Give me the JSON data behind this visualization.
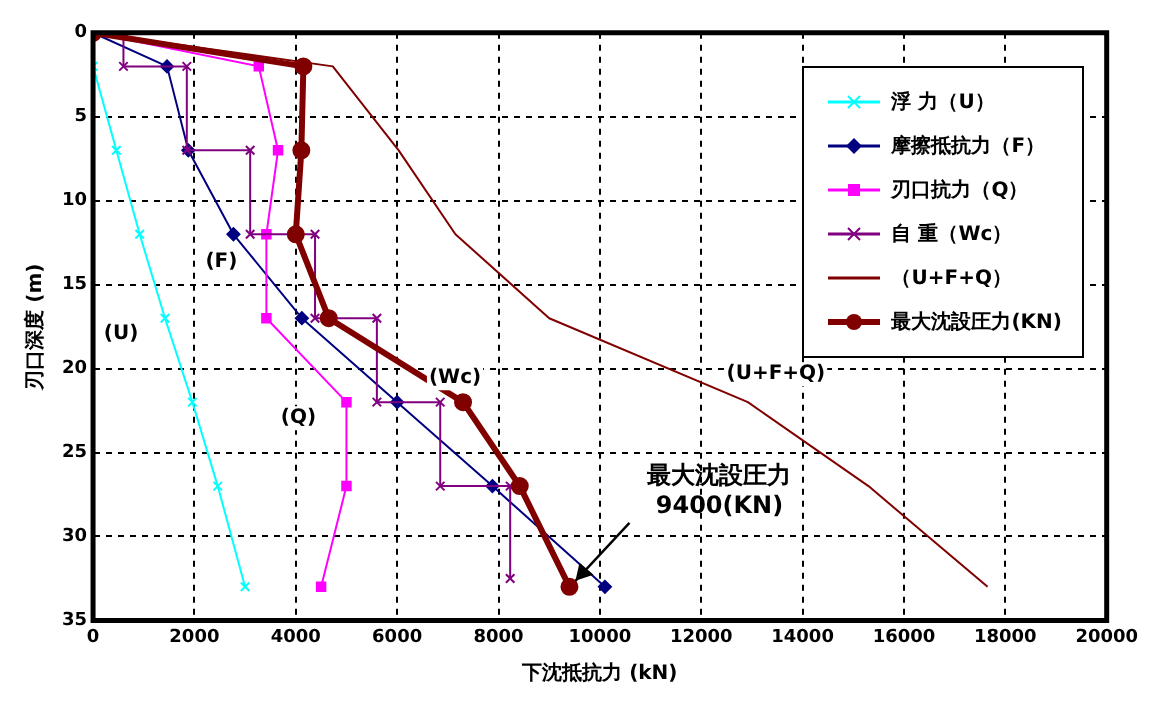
{
  "chart_data": {
    "type": "line",
    "xlabel": "下沈抵抗力 (kN)",
    "ylabel": "刃口深度 (m)",
    "xlim": [
      0,
      20000
    ],
    "xticks": [
      0,
      2000,
      4000,
      6000,
      8000,
      10000,
      12000,
      14000,
      16000,
      18000,
      20000
    ],
    "ylim": [
      35,
      0
    ],
    "yticks": [
      0,
      5,
      10,
      15,
      20,
      25,
      30,
      35
    ],
    "grid": true,
    "legend": "top right",
    "line_style": "solid",
    "series": [
      {
        "name": "浮 力（U）",
        "color": "#00ffff",
        "marker": "cross",
        "x": [
          0,
          0,
          460,
          920,
          1420,
          1960,
          2460,
          3000
        ],
        "values": [
          0,
          2,
          7,
          12,
          17,
          22,
          27,
          33
        ]
      },
      {
        "name": "摩擦抵抗力（F）",
        "color": "#000080",
        "marker": "diamond",
        "x": [
          0,
          1460,
          1880,
          2770,
          4120,
          6000,
          7880,
          10100
        ],
        "values": [
          0,
          2,
          7,
          12,
          17,
          22,
          27,
          33
        ]
      },
      {
        "name": "刃口抗力（Q）",
        "color": "#ff00ff",
        "marker": "square",
        "x": [
          0,
          3270,
          3650,
          3420,
          3420,
          5000,
          5000,
          4500
        ],
        "values": [
          0,
          2,
          7,
          12,
          17,
          22,
          27,
          33
        ]
      },
      {
        "name": "自 重（Wc）",
        "color": "#800080",
        "marker": "cross",
        "x": [
          600,
          600,
          1850,
          1850,
          3100,
          3100,
          4380,
          4380,
          5600,
          5600,
          6850,
          6850,
          8230,
          8230
        ],
        "values": [
          0,
          2,
          2,
          7,
          7,
          12,
          12,
          17,
          17,
          22,
          22,
          27,
          27,
          32.5
        ]
      },
      {
        "name": "（U+F+Q）",
        "color": "#800000",
        "marker": "none",
        "x": [
          0,
          4730,
          6030,
          7150,
          9000,
          12920,
          15300,
          17650
        ],
        "values": [
          0,
          2,
          7,
          12,
          17,
          22,
          27,
          33
        ]
      },
      {
        "name": "最大沈設圧力(KN)",
        "color": "#800000",
        "marker": "circle",
        "x": [
          0,
          4150,
          4110,
          4000,
          4650,
          7300,
          8420,
          9400
        ],
        "values": [
          0,
          2,
          7,
          12,
          17,
          22,
          27,
          33
        ]
      }
    ],
    "annotations": [
      {
        "text": "(U)",
        "x": 1420,
        "y": 17
      },
      {
        "text": "(F)",
        "x": 2770,
        "y": 12
      },
      {
        "text": "(Q)",
        "x": 5000,
        "y": 22
      },
      {
        "text": "(Wc)",
        "x": 7300,
        "y": 22
      },
      {
        "text": "(U+F+Q)",
        "x": 12920,
        "y": 22
      },
      {
        "text": "最大沈設圧力\n9400(KN)",
        "x": 9400,
        "y": 33
      }
    ]
  }
}
